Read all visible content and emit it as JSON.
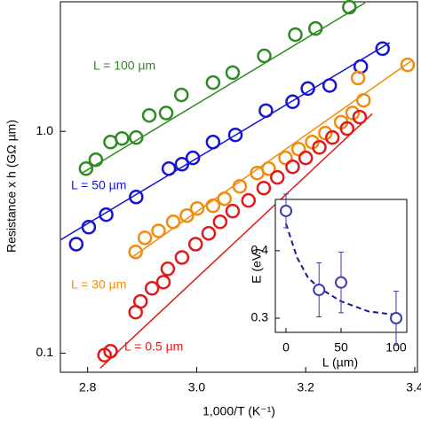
{
  "chart_data": [
    {
      "type": "scatter",
      "log_y": true,
      "x_label": "1,000/T (K⁻¹)",
      "y_label": "Resistance x h (GΩ µm)",
      "xlim": [
        2.75,
        3.405
      ],
      "ylim": [
        0.082,
        3.84
      ],
      "xticks": [
        2.8,
        {
          "value": 3,
          "label": "3.0"
        },
        3.2,
        3.4
      ],
      "yticks": [
        0.1,
        {
          "value": 1,
          "label": "1.0"
        }
      ],
      "series": [
        {
          "name": "L = 100 µm",
          "color": "#2e8b22",
          "x": [
            2.797,
            2.815,
            2.842,
            2.863,
            2.889,
            2.913,
            2.944,
            2.972,
            3.03,
            3.066,
            3.124,
            3.181,
            3.218,
            3.28
          ],
          "values": [
            0.679,
            0.745,
            0.895,
            0.929,
            0.938,
            1.18,
            1.21,
            1.46,
            1.66,
            1.84,
            2.19,
            2.73,
            2.91,
            3.63
          ],
          "fit_x": [
            2.79,
            3.309
          ],
          "fit": [
            0.649,
            3.8
          ]
        },
        {
          "name": "L = 50 µm",
          "color": "#1515d4",
          "x": [
            2.779,
            2.802,
            2.834,
            2.889,
            2.949,
            2.973,
            2.993,
            3.03,
            3.071,
            3.127,
            3.176,
            3.204,
            3.244,
            3.301,
            3.341
          ],
          "values": [
            0.31,
            0.37,
            0.421,
            0.506,
            0.679,
            0.711,
            0.759,
            0.895,
            0.964,
            1.24,
            1.36,
            1.56,
            1.61,
            1.96,
            2.36
          ],
          "fit_x": [
            2.751,
            3.354
          ],
          "fit": [
            0.325,
            2.51
          ]
        },
        {
          "name": "L = 30 µm",
          "color": "#f08c10",
          "x": [
            2.888,
            2.905,
            2.93,
            2.957,
            2.982,
            3.001,
            3.03,
            3.051,
            3.079,
            3.111,
            3.132,
            3.163,
            3.187,
            3.212,
            3.236,
            3.265,
            3.286,
            3.296,
            3.306,
            3.387
          ],
          "values": [
            0.286,
            0.331,
            0.356,
            0.391,
            0.417,
            0.449,
            0.462,
            0.497,
            0.565,
            0.649,
            0.679,
            0.759,
            0.832,
            0.895,
            0.982,
            1.1,
            1.21,
            1.74,
            1.38,
            1.995
          ],
          "fit_x": [
            2.881,
            3.395
          ],
          "fit": [
            0.27,
            2.09
          ]
        },
        {
          "name": "L = 0.5 µm",
          "color": "#e01a1a",
          "x": [
            2.831,
            2.842,
            2.888,
            2.897,
            2.918,
            2.939,
            2.947,
            2.973,
            2.998,
            3.022,
            3.043,
            3.066,
            3.095,
            3.123,
            3.148,
            3.176,
            3.2,
            3.225,
            3.249,
            3.276,
            3.299
          ],
          "values": [
            0.098,
            0.102,
            0.153,
            0.171,
            0.196,
            0.209,
            0.24,
            0.27,
            0.31,
            0.347,
            0.391,
            0.437,
            0.488,
            0.555,
            0.62,
            0.692,
            0.759,
            0.847,
            0.938,
            1.03,
            1.16
          ],
          "fit_x": [
            2.823,
            3.322
          ],
          "fit": [
            0.0855,
            1.2
          ]
        }
      ]
    },
    {
      "type": "errorbar",
      "x_label": "L (µm)",
      "y_label": "E (eV)",
      "xlim": [
        -9.7,
        109.7
      ],
      "ylim": [
        0.279,
        0.476
      ],
      "xticks": [
        0,
        50,
        100
      ],
      "yticks": [
        0.3,
        0.4
      ],
      "series": [
        {
          "color": "#3b3bb3",
          "x": [
            0,
            30,
            50,
            100
          ],
          "values": [
            0.459,
            0.342,
            0.353,
            0.3
          ],
          "errors": [
            0.025,
            0.04,
            0.045,
            0.04
          ],
          "fit_x": [
            0,
            10,
            20,
            30,
            50,
            75,
            100
          ],
          "fit": [
            0.44,
            0.39,
            0.36,
            0.345,
            0.325,
            0.31,
            0.305
          ],
          "fit_color": "#1a1a8c"
        }
      ]
    }
  ]
}
